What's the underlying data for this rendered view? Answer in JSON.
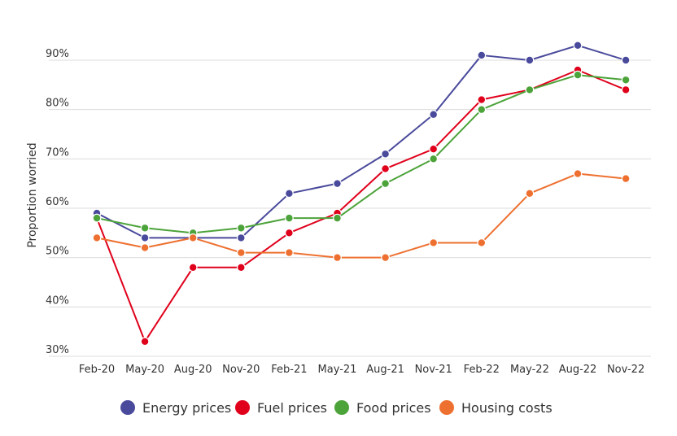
{
  "chart_data": {
    "type": "line",
    "title": "",
    "xlabel": "",
    "ylabel": "Proportion worried",
    "categories": [
      "Feb-20",
      "May-20",
      "Aug-20",
      "Nov-20",
      "Feb-21",
      "May-21",
      "Aug-21",
      "Nov-21",
      "Feb-22",
      "May-22",
      "Aug-22",
      "Nov-22"
    ],
    "y_ticks": [
      "30%",
      "40%",
      "50%",
      "60%",
      "70%",
      "80%",
      "90%"
    ],
    "ylim": [
      30,
      90
    ],
    "grid": "horizontal",
    "legend_position": "bottom",
    "series": [
      {
        "name": "Energy prices",
        "color": "#4a4a9c",
        "values": [
          59,
          54,
          54,
          54,
          63,
          65,
          71,
          79,
          91,
          90,
          93,
          90
        ]
      },
      {
        "name": "Fuel prices",
        "color": "#e0001b",
        "values": [
          58,
          33,
          48,
          48,
          55,
          59,
          68,
          72,
          82,
          84,
          88,
          84
        ]
      },
      {
        "name": "Food prices",
        "color": "#4ca33a",
        "values": [
          58,
          56,
          55,
          56,
          58,
          58,
          65,
          70,
          80,
          84,
          87,
          86
        ]
      },
      {
        "name": "Housing costs",
        "color": "#ee7030",
        "values": [
          54,
          52,
          54,
          51,
          51,
          50,
          50,
          53,
          53,
          63,
          67,
          66
        ]
      }
    ]
  }
}
